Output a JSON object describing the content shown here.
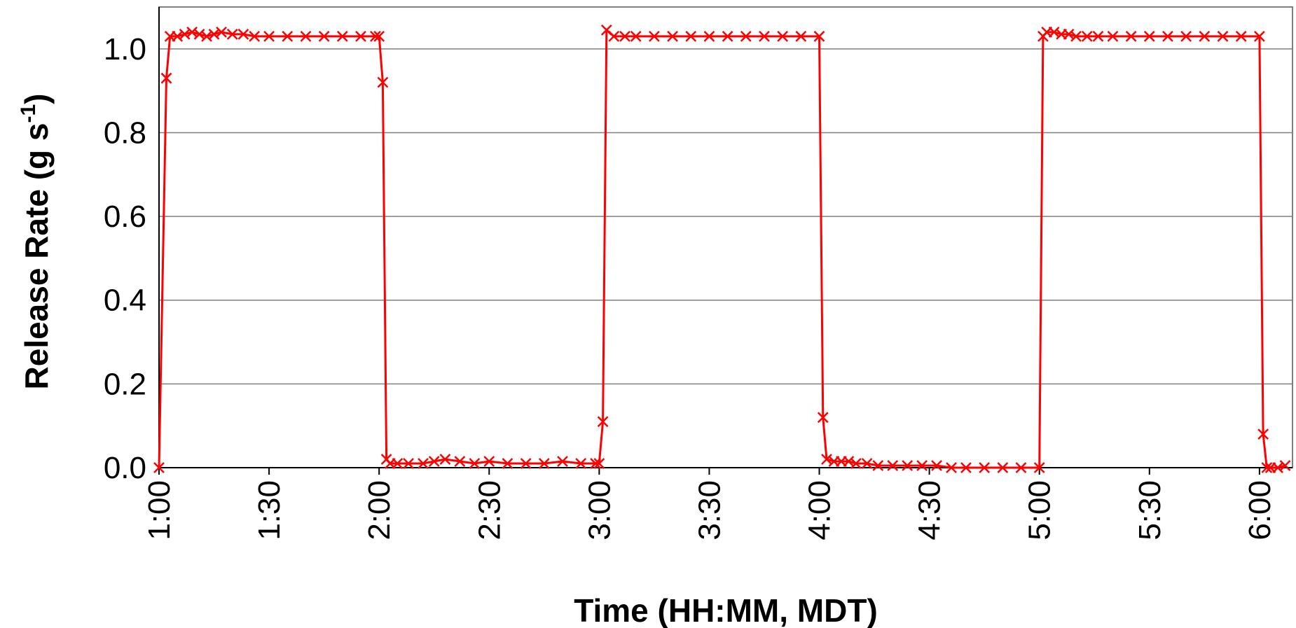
{
  "chart_data": {
    "type": "line",
    "title": "",
    "xlabel": "Time (HH:MM, MDT)",
    "ylabel": {
      "main": "Release Rate (g s",
      "superscript": "-1",
      "close": ")"
    },
    "x_tick_labels": [
      "1:00",
      "1:30",
      "2:00",
      "2:30",
      "3:00",
      "3:30",
      "4:00",
      "4:30",
      "5:00",
      "5:30",
      "6:00"
    ],
    "y_tick_labels": [
      "0.0",
      "0.2",
      "0.4",
      "0.6",
      "0.8",
      "1.0"
    ],
    "xlim": [
      "1:00",
      "6:09"
    ],
    "ylim": [
      0,
      1.1
    ],
    "grid": "horizontal",
    "legend": "none",
    "series_color": "#ff0000",
    "marker": "x",
    "series": [
      {
        "x": [
          "1:00",
          "1:02",
          "1:03",
          "1:05",
          "1:07",
          "1:09",
          "1:11",
          "1:13",
          "1:15",
          "1:17",
          "1:20",
          "1:23",
          "1:26",
          "1:30",
          "1:35",
          "1:40",
          "1:45",
          "1:50",
          "1:55",
          "1:59",
          "2:00",
          "2:01",
          "2:02",
          "2:03",
          "2:05",
          "2:08",
          "2:12",
          "2:15",
          "2:18",
          "2:22",
          "2:26",
          "2:30",
          "2:35",
          "2:40",
          "2:45",
          "2:50",
          "2:55",
          "2:59",
          "3:00",
          "3:01",
          "3:02",
          "3:04",
          "3:07",
          "3:10",
          "3:15",
          "3:20",
          "3:25",
          "3:30",
          "3:35",
          "3:40",
          "3:45",
          "3:50",
          "3:55",
          "4:00",
          "4:01",
          "4:02",
          "4:04",
          "4:06",
          "4:08",
          "4:10",
          "4:13",
          "4:16",
          "4:20",
          "4:24",
          "4:28",
          "4:32",
          "4:36",
          "4:40",
          "4:45",
          "4:50",
          "4:55",
          "5:00",
          "5:01",
          "5:02",
          "5:04",
          "5:06",
          "5:08",
          "5:10",
          "5:13",
          "5:16",
          "5:20",
          "5:25",
          "5:30",
          "5:35",
          "5:40",
          "5:45",
          "5:50",
          "5:55",
          "6:00",
          "6:01",
          "6:02",
          "6:03",
          "6:05",
          "6:07"
        ],
        "values": [
          0.0,
          0.93,
          1.03,
          1.03,
          1.035,
          1.04,
          1.035,
          1.03,
          1.035,
          1.04,
          1.035,
          1.035,
          1.03,
          1.03,
          1.03,
          1.03,
          1.03,
          1.03,
          1.03,
          1.03,
          1.03,
          0.92,
          0.02,
          0.01,
          0.01,
          0.01,
          0.01,
          0.015,
          0.02,
          0.015,
          0.01,
          0.015,
          0.01,
          0.01,
          0.01,
          0.015,
          0.01,
          0.01,
          0.01,
          0.11,
          1.045,
          1.03,
          1.03,
          1.03,
          1.03,
          1.03,
          1.03,
          1.03,
          1.03,
          1.03,
          1.03,
          1.03,
          1.03,
          1.03,
          0.12,
          0.02,
          0.015,
          0.015,
          0.015,
          0.01,
          0.01,
          0.005,
          0.005,
          0.005,
          0.005,
          0.005,
          0.0,
          0.0,
          0.0,
          0.0,
          0.0,
          0.0,
          1.03,
          1.04,
          1.04,
          1.035,
          1.035,
          1.03,
          1.03,
          1.03,
          1.03,
          1.03,
          1.03,
          1.03,
          1.03,
          1.03,
          1.03,
          1.03,
          1.03,
          0.08,
          0.0,
          0.0,
          0.0,
          0.005
        ]
      }
    ]
  }
}
